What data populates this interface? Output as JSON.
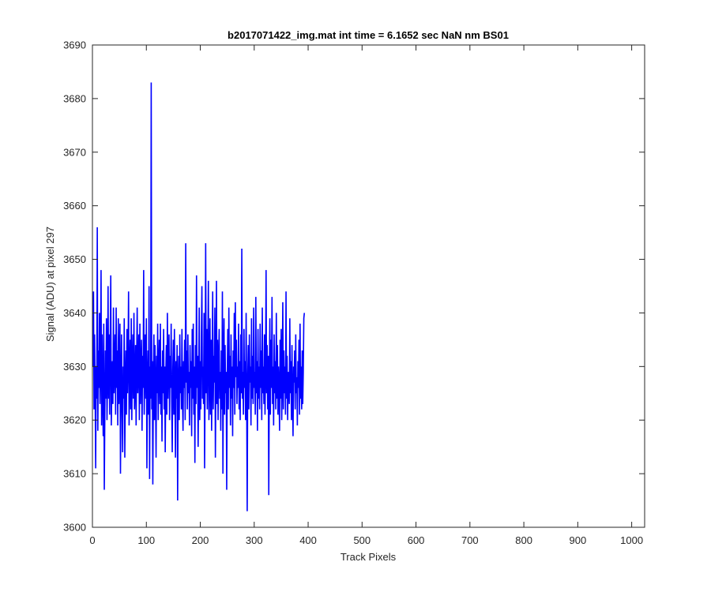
{
  "chart_data": {
    "type": "line",
    "title": "b2017071422_img.mat int time = 6.1652 sec  NaN nm BS01",
    "xlabel": "Track Pixels",
    "ylabel": "Signal (ADU) at pixel 297",
    "xlim": [
      0,
      1024
    ],
    "ylim": [
      3600,
      3690
    ],
    "xticks": [
      0,
      100,
      200,
      300,
      400,
      500,
      600,
      700,
      800,
      900,
      1000
    ],
    "yticks": [
      3600,
      3610,
      3620,
      3630,
      3640,
      3650,
      3660,
      3670,
      3680,
      3690
    ],
    "grid": false,
    "series": [
      {
        "color": "#0000ff",
        "x_start": 1,
        "x_step": 1,
        "values": [
          3630,
          3644,
          3622,
          3636,
          3626,
          3611,
          3630,
          3624,
          3656,
          3618,
          3633,
          3626,
          3640,
          3623,
          3631,
          3648,
          3619,
          3636,
          3625,
          3617,
          3638,
          3607,
          3621,
          3633,
          3624,
          3639,
          3620,
          3628,
          3645,
          3624,
          3636,
          3621,
          3635,
          3647,
          3619,
          3626,
          3631,
          3623,
          3641,
          3625,
          3629,
          3636,
          3621,
          3641,
          3626,
          3633,
          3619,
          3639,
          3623,
          3630,
          3638,
          3610,
          3627,
          3636,
          3622,
          3614,
          3630,
          3624,
          3639,
          3613,
          3626,
          3633,
          3621,
          3637,
          3625,
          3631,
          3644,
          3619,
          3628,
          3635,
          3622,
          3639,
          3620,
          3630,
          3636,
          3624,
          3640,
          3622,
          3627,
          3634,
          3619,
          3631,
          3641,
          3625,
          3629,
          3636,
          3620,
          3638,
          3623,
          3630,
          3635,
          3618,
          3632,
          3626,
          3648,
          3621,
          3629,
          3636,
          3624,
          3639,
          3611,
          3627,
          3633,
          3621,
          3645,
          3609,
          3630,
          3624,
          3683,
          3622,
          3631,
          3608,
          3627,
          3636,
          3620,
          3634,
          3626,
          3613,
          3632,
          3625,
          3638,
          3620,
          3629,
          3635,
          3623,
          3638,
          3621,
          3630,
          3616,
          3633,
          3625,
          3637,
          3622,
          3630,
          3614,
          3628,
          3634,
          3621,
          3640,
          3624,
          3631,
          3636,
          3620,
          3632,
          3626,
          3638,
          3623,
          3614,
          3629,
          3635,
          3621,
          3637,
          3625,
          3613,
          3631,
          3624,
          3634,
          3605,
          3627,
          3632,
          3620,
          3636,
          3625,
          3630,
          3622,
          3637,
          3624,
          3618,
          3631,
          3626,
          3635,
          3620,
          3653,
          3627,
          3633,
          3622,
          3636,
          3625,
          3629,
          3619,
          3634,
          3626,
          3631,
          3617,
          3637,
          3624,
          3638,
          3621,
          3630,
          3612,
          3634,
          3623,
          3647,
          3626,
          3632,
          3615,
          3627,
          3641,
          3620,
          3631,
          3622,
          3636,
          3645,
          3624,
          3630,
          3623,
          3640,
          3611,
          3627,
          3653,
          3625,
          3637,
          3622,
          3633,
          3646,
          3620,
          3628,
          3639,
          3621,
          3635,
          3618,
          3630,
          3644,
          3622,
          3632,
          3627,
          3641,
          3613,
          3628,
          3646,
          3623,
          3635,
          3620,
          3631,
          3637,
          3624,
          3629,
          3618,
          3633,
          3622,
          3644,
          3610,
          3631,
          3639,
          3621,
          3634,
          3625,
          3629,
          3607,
          3628,
          3637,
          3622,
          3641,
          3626,
          3632,
          3619,
          3636,
          3624,
          3630,
          3617,
          3633,
          3626,
          3640,
          3621,
          3642,
          3628,
          3635,
          3623,
          3630,
          3626,
          3638,
          3622,
          3631,
          3620,
          3636,
          3625,
          3652,
          3624,
          3629,
          3621,
          3637,
          3626,
          3631,
          3620,
          3640,
          3625,
          3603,
          3628,
          3634,
          3622,
          3636,
          3627,
          3630,
          3619,
          3639,
          3624,
          3632,
          3623,
          3641,
          3626,
          3629,
          3621,
          3643,
          3625,
          3631,
          3618,
          3637,
          3624,
          3630,
          3622,
          3638,
          3626,
          3633,
          3620,
          3641,
          3625,
          3630,
          3623,
          3636,
          3621,
          3629,
          3648,
          3625,
          3634,
          3622,
          3632,
          3606,
          3628,
          3639,
          3621,
          3635,
          3626,
          3643,
          3623,
          3630,
          3619,
          3636,
          3625,
          3631,
          3622,
          3640,
          3624,
          3634,
          3621,
          3630,
          3626,
          3618,
          3635,
          3624,
          3637,
          3620,
          3628,
          3642,
          3622,
          3633,
          3625,
          3630,
          3621,
          3644,
          3624,
          3632,
          3620,
          3629,
          3626,
          3623,
          3639,
          3625,
          3631,
          3620,
          3634,
          3624,
          3617,
          3630,
          3627,
          3633,
          3622,
          3636,
          3625,
          3628,
          3619,
          3631,
          3626,
          3635,
          3621,
          3638,
          3624,
          3630,
          3622,
          3633,
          3623,
          3629,
          3639,
          3640
        ]
      }
    ]
  }
}
